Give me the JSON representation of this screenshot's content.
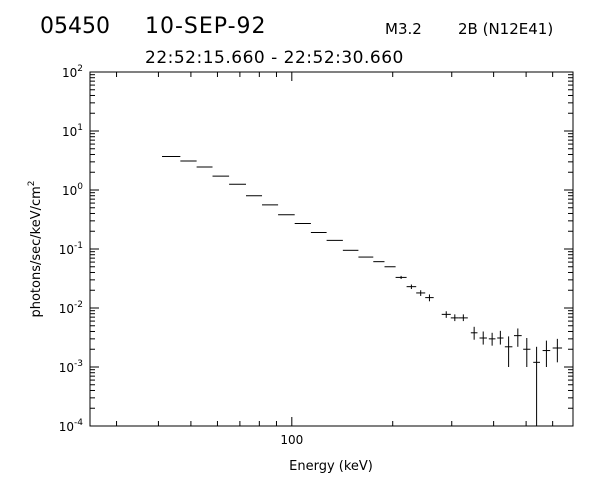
{
  "header": {
    "burst_number": "05450",
    "date": "10-SEP-92",
    "goes_class": "M3.2",
    "optical": "2B (N12E41)",
    "time_range": "22:52:15.660 - 22:52:30.660"
  },
  "chart_data": {
    "type": "scatter",
    "xlabel": "Energy (keV)",
    "ylabel": "photons/sec/keV/cm²",
    "xscale": "log",
    "yscale": "log",
    "xlim": [
      25,
      690
    ],
    "ylim": [
      0.0001,
      100
    ],
    "x_tick_labels": [
      "100"
    ],
    "y_tick_labels": [
      {
        "value": 0.0001,
        "base": "10",
        "exp": "-4"
      },
      {
        "value": 0.001,
        "base": "10",
        "exp": "-3"
      },
      {
        "value": 0.01,
        "base": "10",
        "exp": "-2"
      },
      {
        "value": 0.1,
        "base": "10",
        "exp": "-1"
      },
      {
        "value": 1,
        "base": "10",
        "exp": "0"
      },
      {
        "value": 10,
        "base": "10",
        "exp": "1"
      },
      {
        "value": 100,
        "base": "10",
        "exp": "2"
      }
    ],
    "grid": false,
    "points": [
      {
        "x_lo": 41.0,
        "x_hi": 46.5,
        "y": 3.7
      },
      {
        "x_lo": 46.5,
        "x_hi": 52.0,
        "y": 3.1
      },
      {
        "x_lo": 52.0,
        "x_hi": 58.0,
        "y": 2.45
      },
      {
        "x_lo": 58.0,
        "x_hi": 65.0,
        "y": 1.72
      },
      {
        "x_lo": 65.0,
        "x_hi": 73.0,
        "y": 1.25
      },
      {
        "x_lo": 73.0,
        "x_hi": 81.5,
        "y": 0.8
      },
      {
        "x_lo": 81.5,
        "x_hi": 91.0,
        "y": 0.56
      },
      {
        "x_lo": 91.0,
        "x_hi": 102.0,
        "y": 0.38
      },
      {
        "x_lo": 102.0,
        "x_hi": 114.0,
        "y": 0.27
      },
      {
        "x_lo": 114.0,
        "x_hi": 127.0,
        "y": 0.19
      },
      {
        "x_lo": 127.0,
        "x_hi": 142.0,
        "y": 0.14
      },
      {
        "x_lo": 142.0,
        "x_hi": 158.0,
        "y": 0.095
      },
      {
        "x_lo": 158.0,
        "x_hi": 175.0,
        "y": 0.073
      },
      {
        "x_lo": 175.0,
        "x_hi": 189.0,
        "y": 0.061
      },
      {
        "x_lo": 189.0,
        "x_hi": 204.0,
        "y": 0.05
      },
      {
        "x_lo": 204.0,
        "x_hi": 220.0,
        "y": 0.033,
        "err_lo": 0.031,
        "err_hi": 0.035
      },
      {
        "x_lo": 220.0,
        "x_hi": 235.0,
        "y": 0.023,
        "err_lo": 0.021,
        "err_hi": 0.025
      },
      {
        "x_lo": 235.0,
        "x_hi": 250.0,
        "y": 0.018,
        "err_lo": 0.016,
        "err_hi": 0.02
      },
      {
        "x_lo": 250.0,
        "x_hi": 265.0,
        "y": 0.015,
        "err_lo": 0.013,
        "err_hi": 0.017
      },
      {
        "x_lo": 280.0,
        "x_hi": 298.0,
        "y": 0.0078,
        "err_lo": 0.0068,
        "err_hi": 0.0088
      },
      {
        "x_lo": 298.0,
        "x_hi": 315.0,
        "y": 0.0068,
        "err_lo": 0.006,
        "err_hi": 0.0078
      },
      {
        "x_lo": 315.0,
        "x_hi": 335.0,
        "y": 0.0068,
        "err_lo": 0.006,
        "err_hi": 0.0078
      },
      {
        "x_lo": 342.0,
        "x_hi": 358.0,
        "y": 0.0038,
        "err_lo": 0.0029,
        "err_hi": 0.0048
      },
      {
        "x_lo": 363.0,
        "x_hi": 382.0,
        "y": 0.0031,
        "err_lo": 0.0024,
        "err_hi": 0.004
      },
      {
        "x_lo": 387.0,
        "x_hi": 405.0,
        "y": 0.003,
        "err_lo": 0.0023,
        "err_hi": 0.0038
      },
      {
        "x_lo": 410.0,
        "x_hi": 428.0,
        "y": 0.0031,
        "err_lo": 0.0024,
        "err_hi": 0.0041
      },
      {
        "x_lo": 432.0,
        "x_hi": 455.0,
        "y": 0.0022,
        "err_lo": 0.001,
        "err_hi": 0.0033
      },
      {
        "x_lo": 460.0,
        "x_hi": 485.0,
        "y": 0.0034,
        "err_lo": 0.0022,
        "err_hi": 0.0045
      },
      {
        "x_lo": 490.0,
        "x_hi": 515.0,
        "y": 0.002,
        "err_lo": 0.001,
        "err_hi": 0.0031
      },
      {
        "x_lo": 525.0,
        "x_hi": 550.0,
        "y": 0.0012,
        "err_lo": 0.0001,
        "err_hi": 0.0022
      },
      {
        "x_lo": 560.0,
        "x_hi": 590.0,
        "y": 0.0019,
        "err_lo": 0.001,
        "err_hi": 0.0028
      },
      {
        "x_lo": 600.0,
        "x_hi": 640.0,
        "y": 0.0021,
        "err_lo": 0.0012,
        "err_hi": 0.003
      }
    ]
  }
}
